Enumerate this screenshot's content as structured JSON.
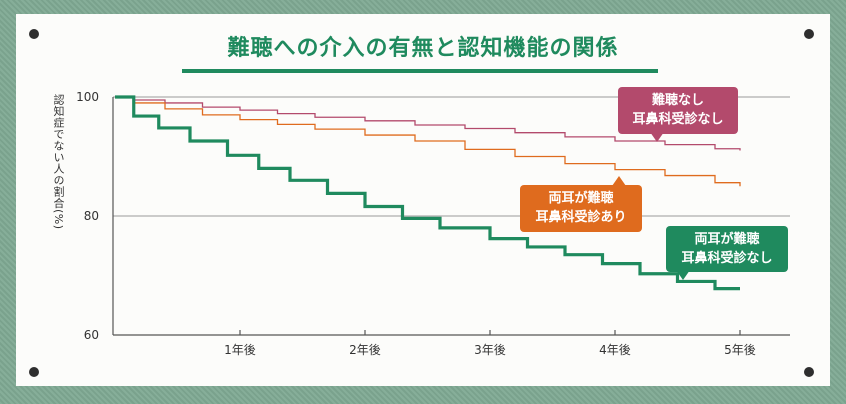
{
  "title": "難聴への介入の有無と認知機能の関係",
  "chart_data": {
    "type": "line",
    "title": "難聴への介入の有無と認知機能の関係",
    "ylabel": "認知症でない人の割合(%)",
    "xlabel": "",
    "xlim": [
      0,
      5.2
    ],
    "ylim": [
      60,
      100
    ],
    "yticks": [
      "100",
      "80",
      "60"
    ],
    "yticks_values": [
      100,
      80,
      60
    ],
    "xticks": [
      "1年後",
      "2年後",
      "3年後",
      "4年後",
      "5年後"
    ],
    "xticks_values": [
      1,
      2,
      3,
      4,
      5
    ],
    "grid": true,
    "series": [
      {
        "name": "難聴なし 耳鼻科受診なし",
        "label_lines": [
          "難聴なし",
          "耳鼻科受診なし"
        ],
        "color": "#b34a6c",
        "x": [
          0,
          0.15,
          0.4,
          0.7,
          1.0,
          1.3,
          1.6,
          2.0,
          2.4,
          2.8,
          3.2,
          3.6,
          4.0,
          4.4,
          4.8,
          5.0
        ],
        "y": [
          100,
          99.5,
          99.0,
          98.3,
          97.8,
          97.2,
          96.6,
          96.0,
          95.3,
          94.7,
          94.0,
          93.3,
          92.6,
          92.0,
          91.3,
          91.0
        ]
      },
      {
        "name": "両耳が難聴 耳鼻科受診あり",
        "label_lines": [
          "両耳が難聴",
          "耳鼻科受診あり"
        ],
        "color": "#df6b1e",
        "x": [
          0,
          0.15,
          0.4,
          0.7,
          1.0,
          1.3,
          1.6,
          2.0,
          2.4,
          2.8,
          3.2,
          3.6,
          4.0,
          4.4,
          4.8,
          5.0
        ],
        "y": [
          100,
          99.0,
          98.0,
          97.0,
          96.2,
          95.4,
          94.6,
          93.6,
          92.6,
          91.2,
          90.0,
          88.8,
          87.8,
          86.8,
          85.6,
          85.0
        ]
      },
      {
        "name": "両耳が難聴 耳鼻科受診なし",
        "label_lines": [
          "両耳が難聴",
          "耳鼻科受診なし"
        ],
        "color": "#1f8a5e",
        "x": [
          0,
          0.15,
          0.35,
          0.6,
          0.9,
          1.15,
          1.4,
          1.7,
          2.0,
          2.3,
          2.6,
          3.0,
          3.3,
          3.6,
          3.9,
          4.2,
          4.5,
          4.8,
          5.0
        ],
        "y": [
          100,
          96.8,
          94.8,
          92.6,
          90.2,
          88.0,
          86.0,
          83.8,
          81.6,
          79.6,
          78.0,
          76.2,
          74.8,
          73.5,
          72.0,
          70.3,
          69.0,
          67.8,
          67.8
        ]
      }
    ]
  }
}
